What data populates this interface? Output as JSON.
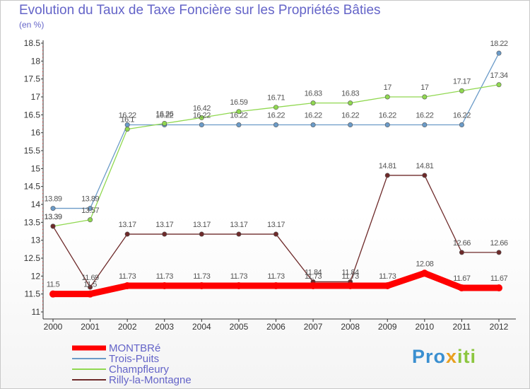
{
  "chart_data": {
    "type": "line",
    "title": "Evolution du Taux de Taxe Foncière sur les Propriétés Bâties",
    "unit": "(en %)",
    "xlabel": "",
    "ylabel": "",
    "x": [
      "2000",
      "2001",
      "2002",
      "2003",
      "2004",
      "2005",
      "2006",
      "2007",
      "2008",
      "2009",
      "2010",
      "2011",
      "2012"
    ],
    "ylim": [
      11,
      18.5
    ],
    "yticks": [
      "11",
      "11.5",
      "12",
      "12.5",
      "13",
      "13.5",
      "14",
      "14.5",
      "15",
      "15.5",
      "16",
      "16.5",
      "17",
      "17.5",
      "18",
      "18.5"
    ],
    "series": [
      {
        "name": "MONTBRé",
        "color": "#ff0000",
        "values": [
          11.5,
          11.5,
          11.73,
          11.73,
          11.73,
          11.73,
          11.73,
          11.73,
          11.73,
          11.73,
          12.08,
          11.67,
          11.67
        ],
        "labels": [
          "11.5",
          "11.5",
          "11.73",
          "11.73",
          "11.73",
          "11.73",
          "11.73",
          "11.73",
          "11.73",
          "11.73",
          "12.08",
          "11.67",
          "11.67"
        ]
      },
      {
        "name": "Trois-Puits",
        "color": "#6b9bc8",
        "values": [
          13.89,
          13.89,
          16.22,
          16.22,
          16.22,
          16.22,
          16.22,
          16.22,
          16.22,
          16.22,
          16.22,
          16.22,
          18.22
        ],
        "labels": [
          "13.89",
          "13.89",
          "16.22",
          "16.22",
          "16.22",
          "16.22",
          "16.22",
          "16.22",
          "16.22",
          "16.22",
          "16.22",
          "16.22",
          "18.22"
        ]
      },
      {
        "name": "Champfleury",
        "color": "#90d850",
        "values": [
          13.39,
          13.57,
          16.1,
          16.26,
          16.42,
          16.59,
          16.71,
          16.83,
          16.83,
          17,
          17,
          17.17,
          17.34
        ],
        "labels": [
          "13.39",
          "13.57",
          "16.1",
          "16.26",
          "16.42",
          "16.59",
          "16.71",
          "16.83",
          "16.83",
          "17",
          "17",
          "17.17",
          "17.34"
        ]
      },
      {
        "name": "Rilly-la-Montagne",
        "color": "#6e2a2a",
        "values": [
          13.39,
          11.69,
          13.17,
          13.17,
          13.17,
          13.17,
          13.17,
          11.84,
          11.84,
          14.81,
          14.81,
          12.66,
          12.66
        ],
        "labels": [
          "13.39",
          "11.69",
          "13.17",
          "13.17",
          "13.17",
          "13.17",
          "13.17",
          "11.84",
          "11.84",
          "14.81",
          "14.81",
          "12.66",
          "12.66"
        ]
      }
    ],
    "legend_position": "bottom-left",
    "grid": false
  },
  "brand": {
    "part1": "Pro",
    "part2": "x",
    "part3": "iti"
  }
}
